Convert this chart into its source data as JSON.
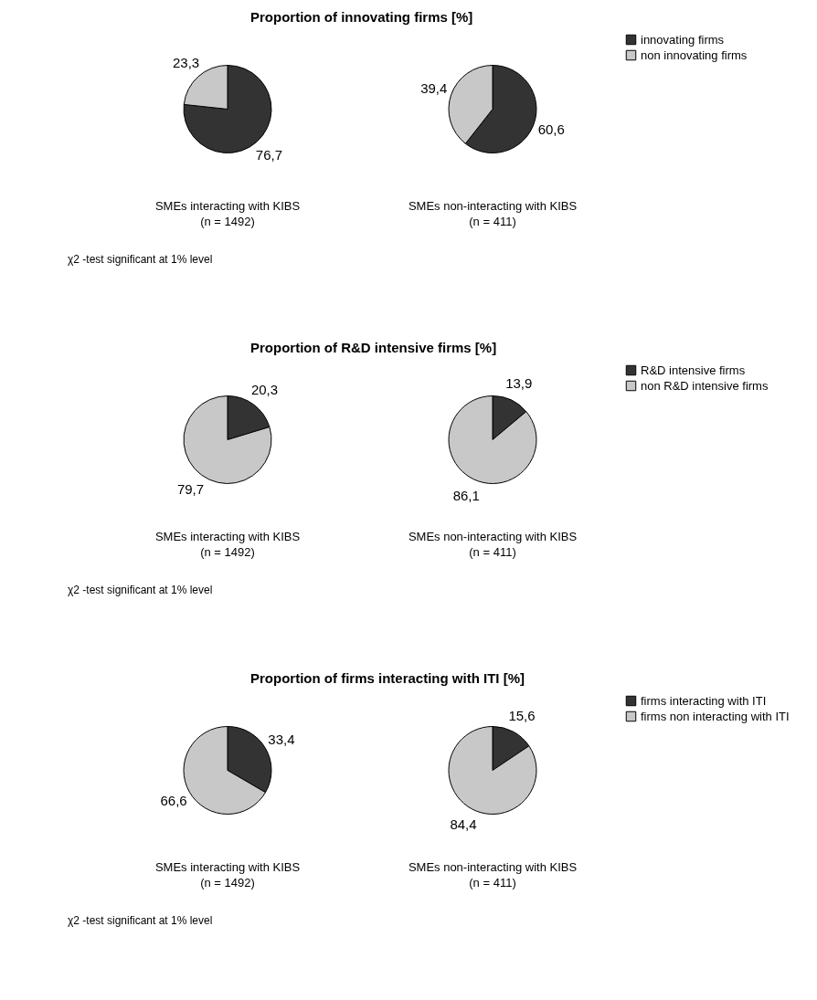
{
  "chart_data": [
    {
      "type": "pie",
      "title": "Proportion of innovating firms [%]",
      "categories": [
        "innovating firms",
        "non innovating firms"
      ],
      "colors": [
        "#333333",
        "#c8c8c8"
      ],
      "legend": "right",
      "series": [
        {
          "name": "SMEs interacting with KIBS\n(n = 1492)",
          "values": [
            76.7,
            23.3
          ],
          "value_labels": [
            "76,7",
            "23,3"
          ]
        },
        {
          "name": "SMEs non-interacting with KIBS\n(n = 411)",
          "values": [
            60.6,
            39.4
          ],
          "value_labels": [
            "60,6",
            "39,4"
          ]
        }
      ],
      "annotations": [
        "χ2 -test significant at 1% level"
      ]
    },
    {
      "type": "pie",
      "title": "Proportion of R&D intensive firms [%]",
      "categories": [
        "R&D intensive firms",
        "non R&D intensive firms"
      ],
      "colors": [
        "#333333",
        "#c8c8c8"
      ],
      "legend": "right",
      "series": [
        {
          "name": "SMEs interacting with KIBS\n(n = 1492)",
          "values": [
            20.3,
            79.7
          ],
          "value_labels": [
            "20,3",
            "79,7"
          ]
        },
        {
          "name": "SMEs non-interacting with KIBS\n(n = 411)",
          "values": [
            13.9,
            86.1
          ],
          "value_labels": [
            "13,9",
            "86,1"
          ]
        }
      ],
      "annotations": [
        "χ2 -test significant at 1% level"
      ]
    },
    {
      "type": "pie",
      "title": "Proportion of firms interacting with ITI [%]",
      "categories": [
        "firms interacting with ITI",
        "firms non interacting with ITI"
      ],
      "colors": [
        "#333333",
        "#c8c8c8"
      ],
      "legend": "right",
      "series": [
        {
          "name": "SMEs interacting with KIBS\n(n = 1492)",
          "values": [
            33.4,
            66.6
          ],
          "value_labels": [
            "33,4",
            "66,6"
          ]
        },
        {
          "name": "SMEs non-interacting with KIBS\n(n = 411)",
          "values": [
            15.6,
            84.4
          ],
          "value_labels": [
            "15,6",
            "84,4"
          ]
        }
      ],
      "annotations": [
        "χ2 -test significant at 1% level"
      ]
    }
  ]
}
